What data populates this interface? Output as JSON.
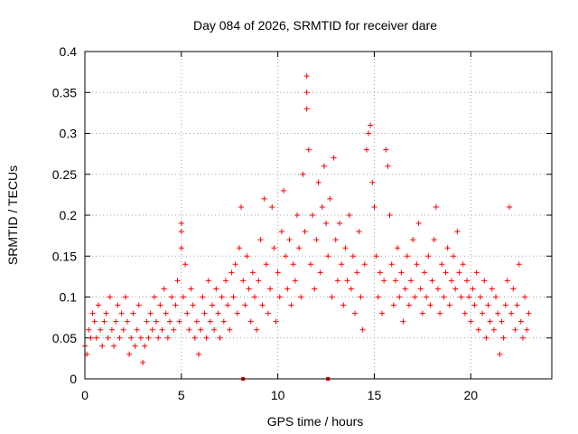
{
  "chart_data": {
    "type": "scatter",
    "title": "Day 084 of 2026, SRMTID for receiver dare",
    "xlabel": "GPS time / hours",
    "ylabel": "SRMTID / TECUs",
    "xlim": [
      0,
      24.2
    ],
    "ylim": [
      0,
      0.4
    ],
    "x_ticks": [
      0,
      5,
      10,
      15,
      20
    ],
    "x_tick_labels": [
      "0",
      "5",
      "10",
      "15",
      "20"
    ],
    "y_ticks": [
      0,
      0.05,
      0.1,
      0.15,
      0.2,
      0.25,
      0.3,
      0.35,
      0.4
    ],
    "y_tick_labels": [
      "0",
      "0.05",
      "0.1",
      "0.15",
      "0.2",
      "0.25",
      "0.3",
      "0.35",
      "0.4"
    ],
    "grid": true,
    "marker": "+",
    "color": "#ff0000",
    "series": [
      {
        "name": "SRMTID",
        "points": [
          [
            0.0,
            0.04
          ],
          [
            0.1,
            0.03
          ],
          [
            0.2,
            0.06
          ],
          [
            0.3,
            0.05
          ],
          [
            0.4,
            0.08
          ],
          [
            0.5,
            0.07
          ],
          [
            0.6,
            0.05
          ],
          [
            0.7,
            0.09
          ],
          [
            0.8,
            0.06
          ],
          [
            0.9,
            0.04
          ],
          [
            1.0,
            0.07
          ],
          [
            1.1,
            0.08
          ],
          [
            1.2,
            0.05
          ],
          [
            1.3,
            0.1
          ],
          [
            1.4,
            0.06
          ],
          [
            1.5,
            0.04
          ],
          [
            1.6,
            0.07
          ],
          [
            1.7,
            0.09
          ],
          [
            1.8,
            0.05
          ],
          [
            1.9,
            0.08
          ],
          [
            2.0,
            0.06
          ],
          [
            2.1,
            0.1
          ],
          [
            2.2,
            0.07
          ],
          [
            2.3,
            0.03
          ],
          [
            2.4,
            0.05
          ],
          [
            2.5,
            0.08
          ],
          [
            2.6,
            0.04
          ],
          [
            2.7,
            0.06
          ],
          [
            2.8,
            0.09
          ],
          [
            2.9,
            0.05
          ],
          [
            3.0,
            0.02
          ],
          [
            3.1,
            0.04
          ],
          [
            3.2,
            0.07
          ],
          [
            3.3,
            0.05
          ],
          [
            3.4,
            0.08
          ],
          [
            3.5,
            0.06
          ],
          [
            3.6,
            0.1
          ],
          [
            3.7,
            0.07
          ],
          [
            3.8,
            0.05
          ],
          [
            3.9,
            0.09
          ],
          [
            4.0,
            0.06
          ],
          [
            4.1,
            0.11
          ],
          [
            4.2,
            0.08
          ],
          [
            4.3,
            0.05
          ],
          [
            4.4,
            0.07
          ],
          [
            4.5,
            0.1
          ],
          [
            4.6,
            0.06
          ],
          [
            4.7,
            0.09
          ],
          [
            4.8,
            0.12
          ],
          [
            4.9,
            0.07
          ],
          [
            5.0,
            0.19
          ],
          [
            5.0,
            0.18
          ],
          [
            5.0,
            0.16
          ],
          [
            5.1,
            0.1
          ],
          [
            5.2,
            0.14
          ],
          [
            5.3,
            0.08
          ],
          [
            5.4,
            0.06
          ],
          [
            5.5,
            0.11
          ],
          [
            5.6,
            0.09
          ],
          [
            5.7,
            0.05
          ],
          [
            5.8,
            0.07
          ],
          [
            5.9,
            0.03
          ],
          [
            6.0,
            0.06
          ],
          [
            6.1,
            0.1
          ],
          [
            6.2,
            0.08
          ],
          [
            6.3,
            0.05
          ],
          [
            6.4,
            0.12
          ],
          [
            6.5,
            0.07
          ],
          [
            6.6,
            0.09
          ],
          [
            6.7,
            0.06
          ],
          [
            6.8,
            0.11
          ],
          [
            6.9,
            0.08
          ],
          [
            7.0,
            0.05
          ],
          [
            7.1,
            0.1
          ],
          [
            7.2,
            0.07
          ],
          [
            7.3,
            0.12
          ],
          [
            7.4,
            0.09
          ],
          [
            7.5,
            0.06
          ],
          [
            7.6,
            0.13
          ],
          [
            7.7,
            0.1
          ],
          [
            7.8,
            0.14
          ],
          [
            7.9,
            0.08
          ],
          [
            8.0,
            0.16
          ],
          [
            8.1,
            0.21
          ],
          [
            8.2,
            0.12
          ],
          [
            8.3,
            0.09
          ],
          [
            8.4,
            0.15
          ],
          [
            8.5,
            0.11
          ],
          [
            8.6,
            0.07
          ],
          [
            8.7,
            0.13
          ],
          [
            8.8,
            0.1
          ],
          [
            8.9,
            0.06
          ],
          [
            9.0,
            0.12
          ],
          [
            9.1,
            0.17
          ],
          [
            9.2,
            0.09
          ],
          [
            9.3,
            0.22
          ],
          [
            9.4,
            0.14
          ],
          [
            9.5,
            0.08
          ],
          [
            9.6,
            0.11
          ],
          [
            9.7,
            0.21
          ],
          [
            9.8,
            0.16
          ],
          [
            9.9,
            0.07
          ],
          [
            10.0,
            0.13
          ],
          [
            10.1,
            0.1
          ],
          [
            10.2,
            0.18
          ],
          [
            10.3,
            0.23
          ],
          [
            10.4,
            0.15
          ],
          [
            10.5,
            0.11
          ],
          [
            10.6,
            0.17
          ],
          [
            10.7,
            0.09
          ],
          [
            10.8,
            0.14
          ],
          [
            10.9,
            0.12
          ],
          [
            11.0,
            0.2
          ],
          [
            11.1,
            0.16
          ],
          [
            11.2,
            0.1
          ],
          [
            11.3,
            0.25
          ],
          [
            11.4,
            0.18
          ],
          [
            11.5,
            0.37
          ],
          [
            11.5,
            0.35
          ],
          [
            11.5,
            0.33
          ],
          [
            11.6,
            0.28
          ],
          [
            11.7,
            0.14
          ],
          [
            11.8,
            0.2
          ],
          [
            11.9,
            0.11
          ],
          [
            12.0,
            0.17
          ],
          [
            12.1,
            0.24
          ],
          [
            12.2,
            0.13
          ],
          [
            12.3,
            0.21
          ],
          [
            12.4,
            0.26
          ],
          [
            12.5,
            0.19
          ],
          [
            12.6,
            0.15
          ],
          [
            12.7,
            0.22
          ],
          [
            12.8,
            0.1
          ],
          [
            12.9,
            0.27
          ],
          [
            13.0,
            0.17
          ],
          [
            13.1,
            0.12
          ],
          [
            13.2,
            0.19
          ],
          [
            13.3,
            0.14
          ],
          [
            13.4,
            0.09
          ],
          [
            13.5,
            0.16
          ],
          [
            13.6,
            0.12
          ],
          [
            13.7,
            0.2
          ],
          [
            13.8,
            0.11
          ],
          [
            13.9,
            0.15
          ],
          [
            14.0,
            0.08
          ],
          [
            14.1,
            0.13
          ],
          [
            14.2,
            0.18
          ],
          [
            14.3,
            0.1
          ],
          [
            14.4,
            0.06
          ],
          [
            14.5,
            0.14
          ],
          [
            14.6,
            0.28
          ],
          [
            14.7,
            0.3
          ],
          [
            14.8,
            0.31
          ],
          [
            14.9,
            0.24
          ],
          [
            15.0,
            0.21
          ],
          [
            15.1,
            0.15
          ],
          [
            15.2,
            0.1
          ],
          [
            15.3,
            0.13
          ],
          [
            15.4,
            0.08
          ],
          [
            15.5,
            0.12
          ],
          [
            15.6,
            0.28
          ],
          [
            15.7,
            0.26
          ],
          [
            15.8,
            0.2
          ],
          [
            15.9,
            0.14
          ],
          [
            16.0,
            0.09
          ],
          [
            16.1,
            0.12
          ],
          [
            16.2,
            0.16
          ],
          [
            16.3,
            0.1
          ],
          [
            16.4,
            0.13
          ],
          [
            16.5,
            0.07
          ],
          [
            16.6,
            0.11
          ],
          [
            16.7,
            0.15
          ],
          [
            16.8,
            0.09
          ],
          [
            16.9,
            0.12
          ],
          [
            17.0,
            0.17
          ],
          [
            17.1,
            0.1
          ],
          [
            17.2,
            0.14
          ],
          [
            17.3,
            0.19
          ],
          [
            17.4,
            0.11
          ],
          [
            17.5,
            0.08
          ],
          [
            17.6,
            0.13
          ],
          [
            17.7,
            0.1
          ],
          [
            17.8,
            0.15
          ],
          [
            17.9,
            0.09
          ],
          [
            18.0,
            0.12
          ],
          [
            18.1,
            0.17
          ],
          [
            18.2,
            0.21
          ],
          [
            18.3,
            0.11
          ],
          [
            18.4,
            0.08
          ],
          [
            18.5,
            0.14
          ],
          [
            18.6,
            0.1
          ],
          [
            18.7,
            0.13
          ],
          [
            18.8,
            0.16
          ],
          [
            18.9,
            0.09
          ],
          [
            19.0,
            0.12
          ],
          [
            19.1,
            0.15
          ],
          [
            19.2,
            0.11
          ],
          [
            19.3,
            0.18
          ],
          [
            19.4,
            0.13
          ],
          [
            19.5,
            0.1
          ],
          [
            19.6,
            0.14
          ],
          [
            19.7,
            0.08
          ],
          [
            19.8,
            0.12
          ],
          [
            19.9,
            0.1
          ],
          [
            20.0,
            0.07
          ],
          [
            20.1,
            0.11
          ],
          [
            20.2,
            0.09
          ],
          [
            20.3,
            0.13
          ],
          [
            20.4,
            0.06
          ],
          [
            20.5,
            0.1
          ],
          [
            20.6,
            0.08
          ],
          [
            20.7,
            0.12
          ],
          [
            20.8,
            0.05
          ],
          [
            20.9,
            0.09
          ],
          [
            21.0,
            0.07
          ],
          [
            21.1,
            0.11
          ],
          [
            21.2,
            0.06
          ],
          [
            21.3,
            0.1
          ],
          [
            21.4,
            0.08
          ],
          [
            21.5,
            0.03
          ],
          [
            21.6,
            0.07
          ],
          [
            21.7,
            0.05
          ],
          [
            21.8,
            0.09
          ],
          [
            21.9,
            0.12
          ],
          [
            22.0,
            0.21
          ],
          [
            22.1,
            0.08
          ],
          [
            22.2,
            0.11
          ],
          [
            22.3,
            0.06
          ],
          [
            22.4,
            0.09
          ],
          [
            22.5,
            0.14
          ],
          [
            22.6,
            0.07
          ],
          [
            22.7,
            0.05
          ],
          [
            22.8,
            0.1
          ],
          [
            22.9,
            0.06
          ],
          [
            23.0,
            0.08
          ]
        ]
      }
    ],
    "axis_markers": [
      8.2,
      12.6
    ]
  }
}
